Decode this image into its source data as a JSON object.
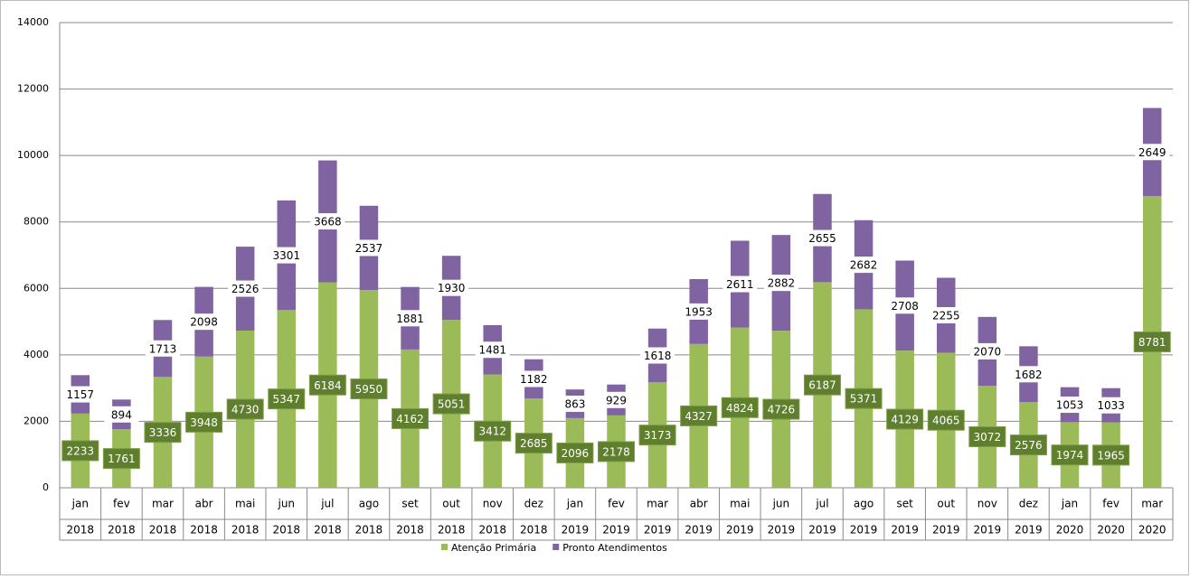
{
  "chart_data": {
    "type": "stacked-bar",
    "categories": [
      "jan",
      "fev",
      "mar",
      "abr",
      "mai",
      "jun",
      "jul",
      "ago",
      "set",
      "out",
      "nov",
      "dez",
      "jan",
      "fev",
      "mar",
      "abr",
      "mai",
      "jun",
      "jul",
      "ago",
      "set",
      "out",
      "nov",
      "dez",
      "jan",
      "fev",
      "mar"
    ],
    "category_years": [
      "2018",
      "2018",
      "2018",
      "2018",
      "2018",
      "2018",
      "2018",
      "2018",
      "2018",
      "2018",
      "2018",
      "2018",
      "2019",
      "2019",
      "2019",
      "2019",
      "2019",
      "2019",
      "2019",
      "2019",
      "2019",
      "2019",
      "2019",
      "2019",
      "2020",
      "2020",
      "2020"
    ],
    "series": [
      {
        "name": "Atenção Primária",
        "color": "#9bbb59",
        "values": [
          2233,
          1761,
          3336,
          3948,
          4730,
          5347,
          6184,
          5950,
          4162,
          5051,
          3412,
          2685,
          2096,
          2178,
          3173,
          4327,
          4824,
          4726,
          6187,
          5371,
          4129,
          4065,
          3072,
          2576,
          1974,
          1965,
          8781
        ]
      },
      {
        "name": "Pronto Atendimentos",
        "color": "#8064a2",
        "values": [
          1157,
          894,
          1713,
          2098,
          2526,
          3301,
          3668,
          2537,
          1881,
          1930,
          1481,
          1182,
          863,
          929,
          1618,
          1953,
          2611,
          2882,
          2655,
          2682,
          2708,
          2255,
          2070,
          1682,
          1053,
          1033,
          2649
        ]
      }
    ],
    "ylim": [
      0,
      14000
    ],
    "yticks": [
      0,
      2000,
      4000,
      6000,
      8000,
      10000,
      12000,
      14000
    ],
    "grid": true,
    "legend": "bottom"
  }
}
